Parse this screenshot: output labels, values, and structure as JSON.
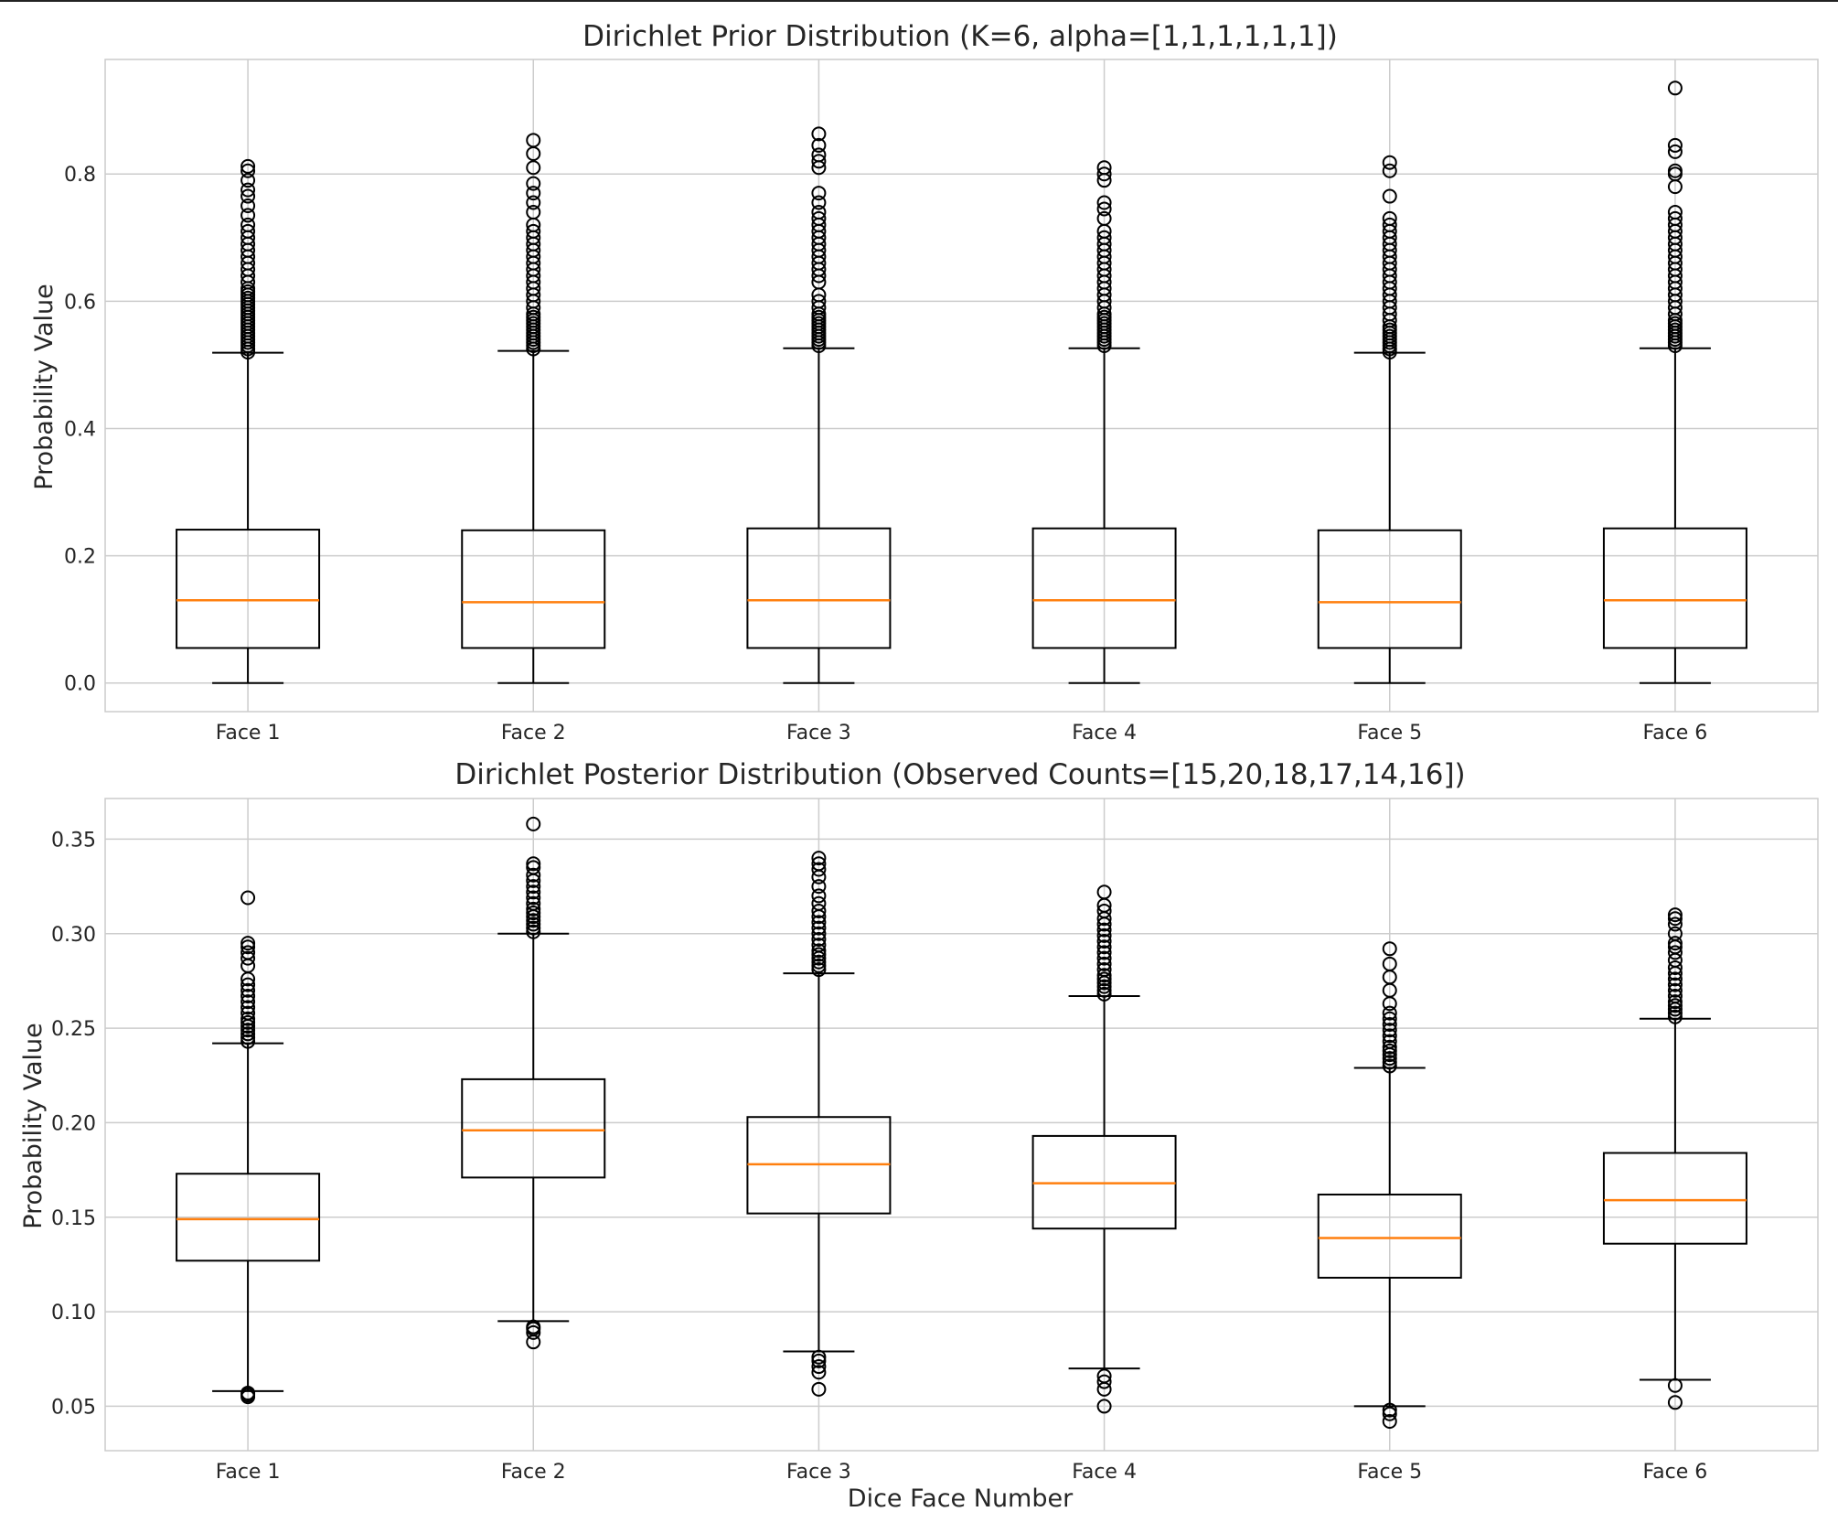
{
  "chart_data": [
    {
      "type": "box",
      "title": "Dirichlet Prior Distribution (K=6, alpha=[1,1,1,1,1,1])",
      "xlabel": "",
      "ylabel": "Probability Value",
      "ylim": [
        -0.045,
        0.98
      ],
      "yticks": [
        0.0,
        0.2,
        0.4,
        0.6,
        0.8
      ],
      "ytick_labels": [
        "0.0",
        "0.2",
        "0.4",
        "0.6",
        "0.8"
      ],
      "grid": true,
      "categories": [
        "Face 1",
        "Face 2",
        "Face 3",
        "Face 4",
        "Face 5",
        "Face 6"
      ],
      "boxes": [
        {
          "whislo": 0.0,
          "q1": 0.055,
          "med": 0.13,
          "q3": 0.241,
          "whishi": 0.519,
          "fliers": [
            0.52,
            0.525,
            0.53,
            0.535,
            0.54,
            0.545,
            0.55,
            0.555,
            0.56,
            0.565,
            0.57,
            0.575,
            0.58,
            0.585,
            0.59,
            0.595,
            0.6,
            0.605,
            0.61,
            0.615,
            0.62,
            0.63,
            0.64,
            0.65,
            0.66,
            0.67,
            0.68,
            0.69,
            0.7,
            0.71,
            0.72,
            0.735,
            0.75,
            0.765,
            0.775,
            0.79,
            0.805,
            0.812
          ]
        },
        {
          "whislo": 0.0,
          "q1": 0.055,
          "med": 0.127,
          "q3": 0.24,
          "whishi": 0.522,
          "fliers": [
            0.525,
            0.53,
            0.535,
            0.54,
            0.545,
            0.55,
            0.555,
            0.56,
            0.565,
            0.57,
            0.575,
            0.58,
            0.59,
            0.6,
            0.61,
            0.62,
            0.63,
            0.64,
            0.65,
            0.66,
            0.67,
            0.68,
            0.69,
            0.7,
            0.71,
            0.72,
            0.74,
            0.755,
            0.77,
            0.785,
            0.81,
            0.832,
            0.853
          ]
        },
        {
          "whislo": 0.0,
          "q1": 0.055,
          "med": 0.13,
          "q3": 0.243,
          "whishi": 0.526,
          "fliers": [
            0.53,
            0.535,
            0.54,
            0.545,
            0.55,
            0.555,
            0.56,
            0.565,
            0.57,
            0.575,
            0.58,
            0.59,
            0.6,
            0.61,
            0.63,
            0.64,
            0.65,
            0.66,
            0.67,
            0.68,
            0.69,
            0.7,
            0.71,
            0.72,
            0.73,
            0.74,
            0.755,
            0.77,
            0.81,
            0.82,
            0.83,
            0.845,
            0.863
          ]
        },
        {
          "whislo": 0.0,
          "q1": 0.055,
          "med": 0.13,
          "q3": 0.243,
          "whishi": 0.526,
          "fliers": [
            0.53,
            0.535,
            0.54,
            0.545,
            0.55,
            0.555,
            0.56,
            0.565,
            0.57,
            0.575,
            0.58,
            0.59,
            0.6,
            0.61,
            0.62,
            0.63,
            0.64,
            0.65,
            0.66,
            0.67,
            0.68,
            0.69,
            0.7,
            0.71,
            0.73,
            0.745,
            0.755,
            0.79,
            0.8,
            0.81
          ]
        },
        {
          "whislo": 0.0,
          "q1": 0.055,
          "med": 0.127,
          "q3": 0.24,
          "whishi": 0.519,
          "fliers": [
            0.52,
            0.525,
            0.53,
            0.535,
            0.54,
            0.545,
            0.55,
            0.555,
            0.56,
            0.57,
            0.58,
            0.59,
            0.6,
            0.61,
            0.62,
            0.63,
            0.64,
            0.65,
            0.66,
            0.67,
            0.68,
            0.69,
            0.7,
            0.71,
            0.72,
            0.73,
            0.765,
            0.805,
            0.818
          ]
        },
        {
          "whislo": 0.0,
          "q1": 0.055,
          "med": 0.13,
          "q3": 0.243,
          "whishi": 0.526,
          "fliers": [
            0.53,
            0.535,
            0.54,
            0.545,
            0.55,
            0.555,
            0.56,
            0.565,
            0.57,
            0.58,
            0.59,
            0.6,
            0.61,
            0.62,
            0.63,
            0.64,
            0.65,
            0.66,
            0.67,
            0.68,
            0.69,
            0.7,
            0.71,
            0.72,
            0.73,
            0.74,
            0.78,
            0.8,
            0.805,
            0.835,
            0.845,
            0.935
          ]
        }
      ]
    },
    {
      "type": "box",
      "title": "Dirichlet Posterior Distribution (Observed Counts=[15,20,18,17,14,16])",
      "xlabel": "Dice Face Number",
      "ylabel": "Probability Value",
      "ylim": [
        0.0265,
        0.3715
      ],
      "yticks": [
        0.05,
        0.1,
        0.15,
        0.2,
        0.25,
        0.3,
        0.35
      ],
      "ytick_labels": [
        "0.05",
        "0.10",
        "0.15",
        "0.20",
        "0.25",
        "0.30",
        "0.35"
      ],
      "grid": true,
      "categories": [
        "Face 1",
        "Face 2",
        "Face 3",
        "Face 4",
        "Face 5",
        "Face 6"
      ],
      "boxes": [
        {
          "whislo": 0.058,
          "q1": 0.127,
          "med": 0.149,
          "q3": 0.173,
          "whishi": 0.242,
          "fliers": [
            0.055,
            0.056,
            0.057,
            0.243,
            0.245,
            0.247,
            0.249,
            0.251,
            0.253,
            0.255,
            0.258,
            0.261,
            0.264,
            0.267,
            0.27,
            0.273,
            0.276,
            0.283,
            0.287,
            0.29,
            0.293,
            0.295,
            0.319
          ]
        },
        {
          "whislo": 0.095,
          "q1": 0.171,
          "med": 0.196,
          "q3": 0.223,
          "whishi": 0.3,
          "fliers": [
            0.084,
            0.089,
            0.091,
            0.092,
            0.301,
            0.303,
            0.305,
            0.307,
            0.309,
            0.311,
            0.313,
            0.316,
            0.319,
            0.322,
            0.325,
            0.328,
            0.331,
            0.335,
            0.337,
            0.358
          ]
        },
        {
          "whislo": 0.079,
          "q1": 0.152,
          "med": 0.178,
          "q3": 0.203,
          "whishi": 0.279,
          "fliers": [
            0.059,
            0.068,
            0.071,
            0.074,
            0.076,
            0.281,
            0.283,
            0.285,
            0.287,
            0.289,
            0.291,
            0.294,
            0.297,
            0.3,
            0.303,
            0.306,
            0.309,
            0.312,
            0.316,
            0.32,
            0.325,
            0.33,
            0.334,
            0.337,
            0.34
          ]
        },
        {
          "whislo": 0.07,
          "q1": 0.144,
          "med": 0.168,
          "q3": 0.193,
          "whishi": 0.267,
          "fliers": [
            0.05,
            0.059,
            0.063,
            0.066,
            0.268,
            0.27,
            0.272,
            0.274,
            0.276,
            0.278,
            0.281,
            0.284,
            0.287,
            0.29,
            0.293,
            0.296,
            0.299,
            0.302,
            0.305,
            0.308,
            0.312,
            0.315,
            0.322
          ]
        },
        {
          "whislo": 0.05,
          "q1": 0.118,
          "med": 0.139,
          "q3": 0.162,
          "whishi": 0.229,
          "fliers": [
            0.042,
            0.046,
            0.048,
            0.23,
            0.232,
            0.234,
            0.236,
            0.238,
            0.24,
            0.243,
            0.246,
            0.249,
            0.252,
            0.255,
            0.258,
            0.263,
            0.27,
            0.277,
            0.284,
            0.292
          ]
        },
        {
          "whislo": 0.064,
          "q1": 0.136,
          "med": 0.159,
          "q3": 0.184,
          "whishi": 0.255,
          "fliers": [
            0.052,
            0.061,
            0.256,
            0.258,
            0.26,
            0.262,
            0.264,
            0.267,
            0.27,
            0.273,
            0.276,
            0.279,
            0.282,
            0.286,
            0.29,
            0.293,
            0.295,
            0.3,
            0.305,
            0.308,
            0.31
          ]
        }
      ]
    }
  ]
}
